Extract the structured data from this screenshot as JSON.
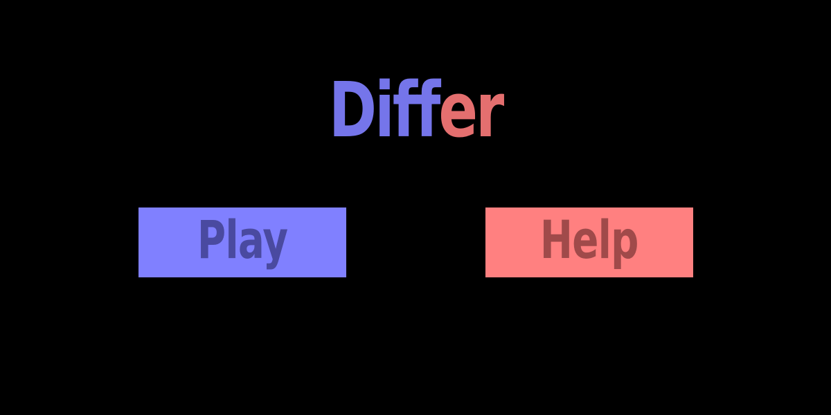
{
  "title": {
    "part1": "Diff",
    "part2": "er"
  },
  "menu": {
    "play_label": "Play",
    "help_label": "Help"
  },
  "colors": {
    "background": "#000000",
    "title_part1": "#7575ea",
    "title_part2": "#e46f6f",
    "play_button_bg": "#8080ff",
    "play_button_text": "#4a4aa0",
    "help_button_bg": "#ff8080",
    "help_button_text": "#a04a4a"
  }
}
